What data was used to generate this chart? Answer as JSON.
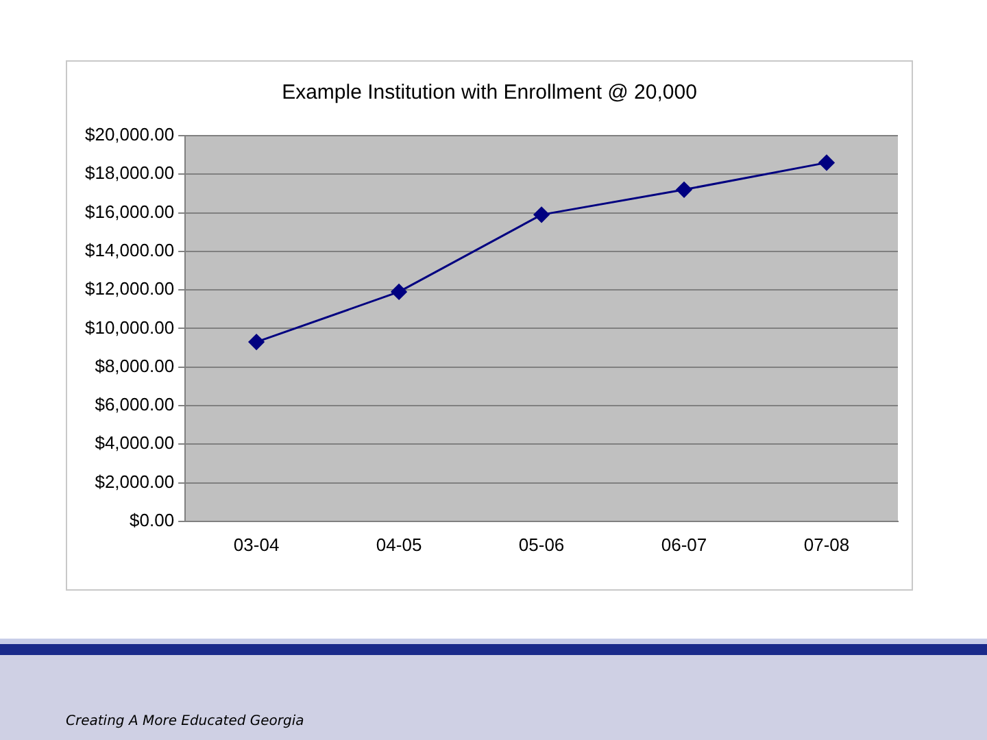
{
  "chart_data": {
    "type": "line",
    "title": "Example Institution with Enrollment @ 20,000",
    "categories": [
      "03-04",
      "04-05",
      "05-06",
      "06-07",
      "07-08"
    ],
    "series": [
      {
        "color": "#000080",
        "values": [
          9300,
          11900,
          15900,
          17200,
          18600
        ]
      }
    ],
    "ylim": [
      0,
      20000
    ],
    "yticks": [
      {
        "value": 0,
        "label": "$0.00"
      },
      {
        "value": 2000,
        "label": "$2,000.00"
      },
      {
        "value": 4000,
        "label": "$4,000.00"
      },
      {
        "value": 6000,
        "label": "$6,000.00"
      },
      {
        "value": 8000,
        "label": "$8,000.00"
      },
      {
        "value": 10000,
        "label": "$10,000.00"
      },
      {
        "value": 12000,
        "label": "$12,000.00"
      },
      {
        "value": 14000,
        "label": "$14,000.00"
      },
      {
        "value": 16000,
        "label": "$16,000.00"
      },
      {
        "value": 18000,
        "label": "$18,000.00"
      },
      {
        "value": 20000,
        "label": "$20,000.00"
      }
    ],
    "grid": "y",
    "legend": false,
    "marker": "diamond",
    "line_style": "solid",
    "annotations": [
      "Creating A More Educated Georgia"
    ]
  }
}
